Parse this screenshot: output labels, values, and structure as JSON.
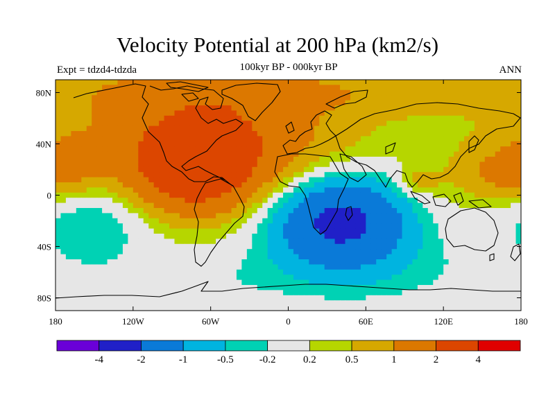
{
  "title": "Velocity Potential at 200 hPa (km2/s)",
  "subtitle": "100kyr BP - 000kyr BP",
  "left_label": "Expt = tdzd4-tdzda",
  "right_label": "ANN",
  "map": {
    "projection": "cylindrical-equidistant",
    "lon_range": [
      -180,
      180
    ],
    "lat_range": [
      -90,
      90
    ],
    "lon_ticks": [
      {
        "value": -180,
        "label": "180"
      },
      {
        "value": -120,
        "label": "120W"
      },
      {
        "value": -60,
        "label": "60W"
      },
      {
        "value": 0,
        "label": "0"
      },
      {
        "value": 60,
        "label": "60E"
      },
      {
        "value": 120,
        "label": "120E"
      },
      {
        "value": 180,
        "label": "180"
      }
    ],
    "lat_ticks": [
      {
        "value": 80,
        "label": "80N"
      },
      {
        "value": 40,
        "label": "40N"
      },
      {
        "value": 0,
        "label": "0"
      },
      {
        "value": -40,
        "label": "40S"
      },
      {
        "value": -80,
        "label": "80S"
      }
    ],
    "field_centers": [
      {
        "lon": -75,
        "lat": 20,
        "value": 2.3,
        "sx": 30,
        "sy": 22
      },
      {
        "lon": -50,
        "lat": 35,
        "value": 1.3,
        "sx": 55,
        "sy": 30
      },
      {
        "lon": -80,
        "lat": 65,
        "value": 0.6,
        "sx": 70,
        "sy": 30
      },
      {
        "lon": -170,
        "lat": 30,
        "value": 0.5,
        "sx": 25,
        "sy": 15
      },
      {
        "lon": 170,
        "lat": 15,
        "value": 0.8,
        "sx": 28,
        "sy": 14
      },
      {
        "lon": 100,
        "lat": 10,
        "value": 0.6,
        "sx": 12,
        "sy": 8
      },
      {
        "lon": 40,
        "lat": -18,
        "value": -2.6,
        "sx": 38,
        "sy": 25
      },
      {
        "lon": 60,
        "lat": -60,
        "value": -0.6,
        "sx": 80,
        "sy": 25
      },
      {
        "lon": -150,
        "lat": -20,
        "value": -0.8,
        "sx": 35,
        "sy": 22
      },
      {
        "lon": -100,
        "lat": -70,
        "value": -0.4,
        "sx": 60,
        "sy": 20
      },
      {
        "lon": 0,
        "lat": 80,
        "value": 0.5,
        "sx": 120,
        "sy": 12
      }
    ],
    "field_background": 0.35
  },
  "colorbar": {
    "colors": [
      "#6a00d8",
      "#2020c8",
      "#0a7ad8",
      "#00b4e0",
      "#00d2b4",
      "#e6e6e6",
      "#b6d600",
      "#d6a800",
      "#dc7800",
      "#dc4600",
      "#e00000"
    ],
    "thresholds": [
      -4,
      -2,
      -1,
      -0.5,
      -0.2,
      0.2,
      0.5,
      1,
      2,
      4
    ],
    "labels": [
      "-4",
      "-2",
      "-1",
      "-0.5",
      "-0.2",
      "0.2",
      "0.5",
      "1",
      "2",
      "4"
    ]
  }
}
